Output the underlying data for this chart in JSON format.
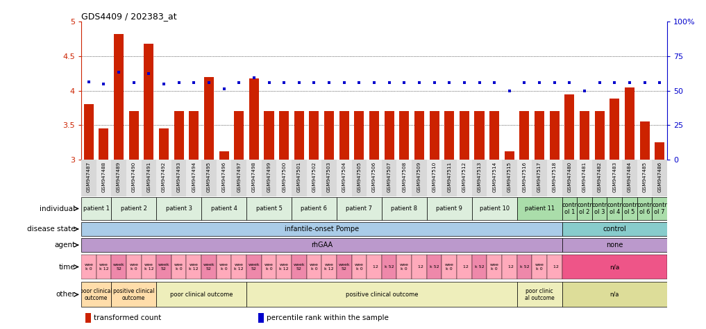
{
  "title": "GDS4409 / 202383_at",
  "sample_ids": [
    "GSM947487",
    "GSM947488",
    "GSM947489",
    "GSM947490",
    "GSM947491",
    "GSM947492",
    "GSM947493",
    "GSM947494",
    "GSM947495",
    "GSM947496",
    "GSM947497",
    "GSM947498",
    "GSM947499",
    "GSM947500",
    "GSM947501",
    "GSM947502",
    "GSM947503",
    "GSM947504",
    "GSM947505",
    "GSM947506",
    "GSM947507",
    "GSM947508",
    "GSM947509",
    "GSM947510",
    "GSM947511",
    "GSM947512",
    "GSM947513",
    "GSM947514",
    "GSM947515",
    "GSM947516",
    "GSM947517",
    "GSM947518",
    "GSM947480",
    "GSM947481",
    "GSM947482",
    "GSM947483",
    "GSM947484",
    "GSM947485",
    "GSM947486"
  ],
  "bar_values": [
    3.8,
    3.45,
    4.82,
    3.7,
    4.68,
    3.45,
    3.7,
    3.7,
    4.2,
    3.12,
    3.7,
    4.18,
    3.7,
    3.7,
    3.7,
    3.7,
    3.7,
    3.7,
    3.7,
    3.7,
    3.7,
    3.7,
    3.7,
    3.7,
    3.7,
    3.7,
    3.7,
    3.7,
    3.12,
    3.7,
    3.7,
    3.7,
    3.95,
    3.7,
    3.7,
    3.88,
    4.05,
    3.55,
    3.25
  ],
  "dot_values": [
    4.13,
    4.1,
    4.27,
    4.12,
    4.25,
    4.1,
    4.12,
    4.12,
    4.12,
    4.03,
    4.12,
    4.19,
    4.12,
    4.12,
    4.12,
    4.12,
    4.12,
    4.12,
    4.12,
    4.12,
    4.12,
    4.12,
    4.12,
    4.12,
    4.12,
    4.12,
    4.12,
    4.12,
    4.0,
    4.12,
    4.12,
    4.12,
    4.12,
    4.0,
    4.12,
    4.12,
    4.12,
    4.12,
    4.12
  ],
  "ylim_min": 3.0,
  "ylim_max": 5.0,
  "yticks": [
    3.0,
    3.5,
    4.0,
    4.5,
    5.0
  ],
  "ytick_labels": [
    "3",
    "3.5",
    "4",
    "4.5",
    "5"
  ],
  "right_ytick_pcts": [
    0,
    25,
    50,
    75,
    100
  ],
  "right_ytick_labels": [
    "0",
    "25",
    "50",
    "75",
    "100%"
  ],
  "bar_color": "#cc2200",
  "dot_color": "#0000cc",
  "individual_groups": [
    {
      "label": "patient 1",
      "start": 0,
      "end": 2,
      "color": "#ddeedd"
    },
    {
      "label": "patient 2",
      "start": 2,
      "end": 5,
      "color": "#ddeedd"
    },
    {
      "label": "patient 3",
      "start": 5,
      "end": 8,
      "color": "#ddeedd"
    },
    {
      "label": "patient 4",
      "start": 8,
      "end": 11,
      "color": "#ddeedd"
    },
    {
      "label": "patient 5",
      "start": 11,
      "end": 14,
      "color": "#ddeedd"
    },
    {
      "label": "patient 6",
      "start": 14,
      "end": 17,
      "color": "#ddeedd"
    },
    {
      "label": "patient 7",
      "start": 17,
      "end": 20,
      "color": "#ddeedd"
    },
    {
      "label": "patient 8",
      "start": 20,
      "end": 23,
      "color": "#ddeedd"
    },
    {
      "label": "patient 9",
      "start": 23,
      "end": 26,
      "color": "#ddeedd"
    },
    {
      "label": "patient 10",
      "start": 26,
      "end": 29,
      "color": "#ddeedd"
    },
    {
      "label": "patient 11",
      "start": 29,
      "end": 32,
      "color": "#aaddaa"
    },
    {
      "label": "contr\nol 1",
      "start": 32,
      "end": 33,
      "color": "#aaddaa"
    },
    {
      "label": "contr\nol 2",
      "start": 33,
      "end": 34,
      "color": "#aaddaa"
    },
    {
      "label": "contr\nol 3",
      "start": 34,
      "end": 35,
      "color": "#aaddaa"
    },
    {
      "label": "contr\nol 4",
      "start": 35,
      "end": 36,
      "color": "#aaddaa"
    },
    {
      "label": "contr\nol 5",
      "start": 36,
      "end": 37,
      "color": "#aaddaa"
    },
    {
      "label": "contr\nol 6",
      "start": 37,
      "end": 38,
      "color": "#aaddaa"
    },
    {
      "label": "contr\nol 7",
      "start": 38,
      "end": 39,
      "color": "#aaddaa"
    }
  ],
  "disease_groups": [
    {
      "label": "infantile-onset Pompe",
      "start": 0,
      "end": 32,
      "color": "#aacce8"
    },
    {
      "label": "control",
      "start": 32,
      "end": 39,
      "color": "#88cccc"
    }
  ],
  "agent_groups": [
    {
      "label": "rhGAA",
      "start": 0,
      "end": 32,
      "color": "#bb99cc"
    },
    {
      "label": "none",
      "start": 32,
      "end": 39,
      "color": "#bb99cc"
    }
  ],
  "time_groups": [
    {
      "label": "wee\nk 0",
      "start": 0,
      "end": 1,
      "color": "#ffaabb"
    },
    {
      "label": "wee\nk 12",
      "start": 1,
      "end": 2,
      "color": "#ffaabb"
    },
    {
      "label": "week\n52",
      "start": 2,
      "end": 3,
      "color": "#ee88aa"
    },
    {
      "label": "wee\nk 0",
      "start": 3,
      "end": 4,
      "color": "#ffaabb"
    },
    {
      "label": "wee\nk 12",
      "start": 4,
      "end": 5,
      "color": "#ffaabb"
    },
    {
      "label": "week\n52",
      "start": 5,
      "end": 6,
      "color": "#ee88aa"
    },
    {
      "label": "wee\nk 0",
      "start": 6,
      "end": 7,
      "color": "#ffaabb"
    },
    {
      "label": "wee\nk 12",
      "start": 7,
      "end": 8,
      "color": "#ffaabb"
    },
    {
      "label": "week\n52",
      "start": 8,
      "end": 9,
      "color": "#ee88aa"
    },
    {
      "label": "wee\nk 0",
      "start": 9,
      "end": 10,
      "color": "#ffaabb"
    },
    {
      "label": "wee\nk 12",
      "start": 10,
      "end": 11,
      "color": "#ffaabb"
    },
    {
      "label": "week\n52",
      "start": 11,
      "end": 12,
      "color": "#ee88aa"
    },
    {
      "label": "wee\nk 0",
      "start": 12,
      "end": 13,
      "color": "#ffaabb"
    },
    {
      "label": "wee\nk 12",
      "start": 13,
      "end": 14,
      "color": "#ffaabb"
    },
    {
      "label": "week\n52",
      "start": 14,
      "end": 15,
      "color": "#ee88aa"
    },
    {
      "label": "wee\nk 0",
      "start": 15,
      "end": 16,
      "color": "#ffaabb"
    },
    {
      "label": "wee\nk 12",
      "start": 16,
      "end": 17,
      "color": "#ffaabb"
    },
    {
      "label": "week\n52",
      "start": 17,
      "end": 18,
      "color": "#ee88aa"
    },
    {
      "label": "wee\nk 0",
      "start": 18,
      "end": 19,
      "color": "#ffaabb"
    },
    {
      "label": "  12",
      "start": 19,
      "end": 20,
      "color": "#ffaabb"
    },
    {
      "label": "k 52",
      "start": 20,
      "end": 21,
      "color": "#ee88aa"
    },
    {
      "label": "wee\nk 0",
      "start": 21,
      "end": 22,
      "color": "#ffaabb"
    },
    {
      "label": "  12",
      "start": 22,
      "end": 23,
      "color": "#ffaabb"
    },
    {
      "label": "k 52",
      "start": 23,
      "end": 24,
      "color": "#ee88aa"
    },
    {
      "label": "wee\nk 0",
      "start": 24,
      "end": 25,
      "color": "#ffaabb"
    },
    {
      "label": "  12",
      "start": 25,
      "end": 26,
      "color": "#ffaabb"
    },
    {
      "label": "k 52",
      "start": 26,
      "end": 27,
      "color": "#ee88aa"
    },
    {
      "label": "wee\nk 0",
      "start": 27,
      "end": 28,
      "color": "#ffaabb"
    },
    {
      "label": "  12",
      "start": 28,
      "end": 29,
      "color": "#ffaabb"
    },
    {
      "label": "k 52",
      "start": 29,
      "end": 30,
      "color": "#ee88aa"
    },
    {
      "label": "wee\nk 0",
      "start": 30,
      "end": 31,
      "color": "#ffaabb"
    },
    {
      "label": "  12",
      "start": 31,
      "end": 32,
      "color": "#ffaabb"
    },
    {
      "label": "n/a",
      "start": 32,
      "end": 39,
      "color": "#ee5588"
    }
  ],
  "other_groups": [
    {
      "label": "poor clinical\noutcome",
      "start": 0,
      "end": 2,
      "color": "#ffddaa"
    },
    {
      "label": "positive clinical\noutcome",
      "start": 2,
      "end": 5,
      "color": "#ffddaa"
    },
    {
      "label": "poor clinical outcome",
      "start": 5,
      "end": 11,
      "color": "#eeeebb"
    },
    {
      "label": "positive clinical outcome",
      "start": 11,
      "end": 29,
      "color": "#eeeebb"
    },
    {
      "label": "poor clinic\nal outcome",
      "start": 29,
      "end": 32,
      "color": "#eeeebb"
    },
    {
      "label": "n/a",
      "start": 32,
      "end": 39,
      "color": "#dddd99"
    }
  ],
  "legend_items": [
    {
      "color": "#cc2200",
      "label": "transformed count"
    },
    {
      "color": "#0000cc",
      "label": "percentile rank within the sample"
    }
  ]
}
